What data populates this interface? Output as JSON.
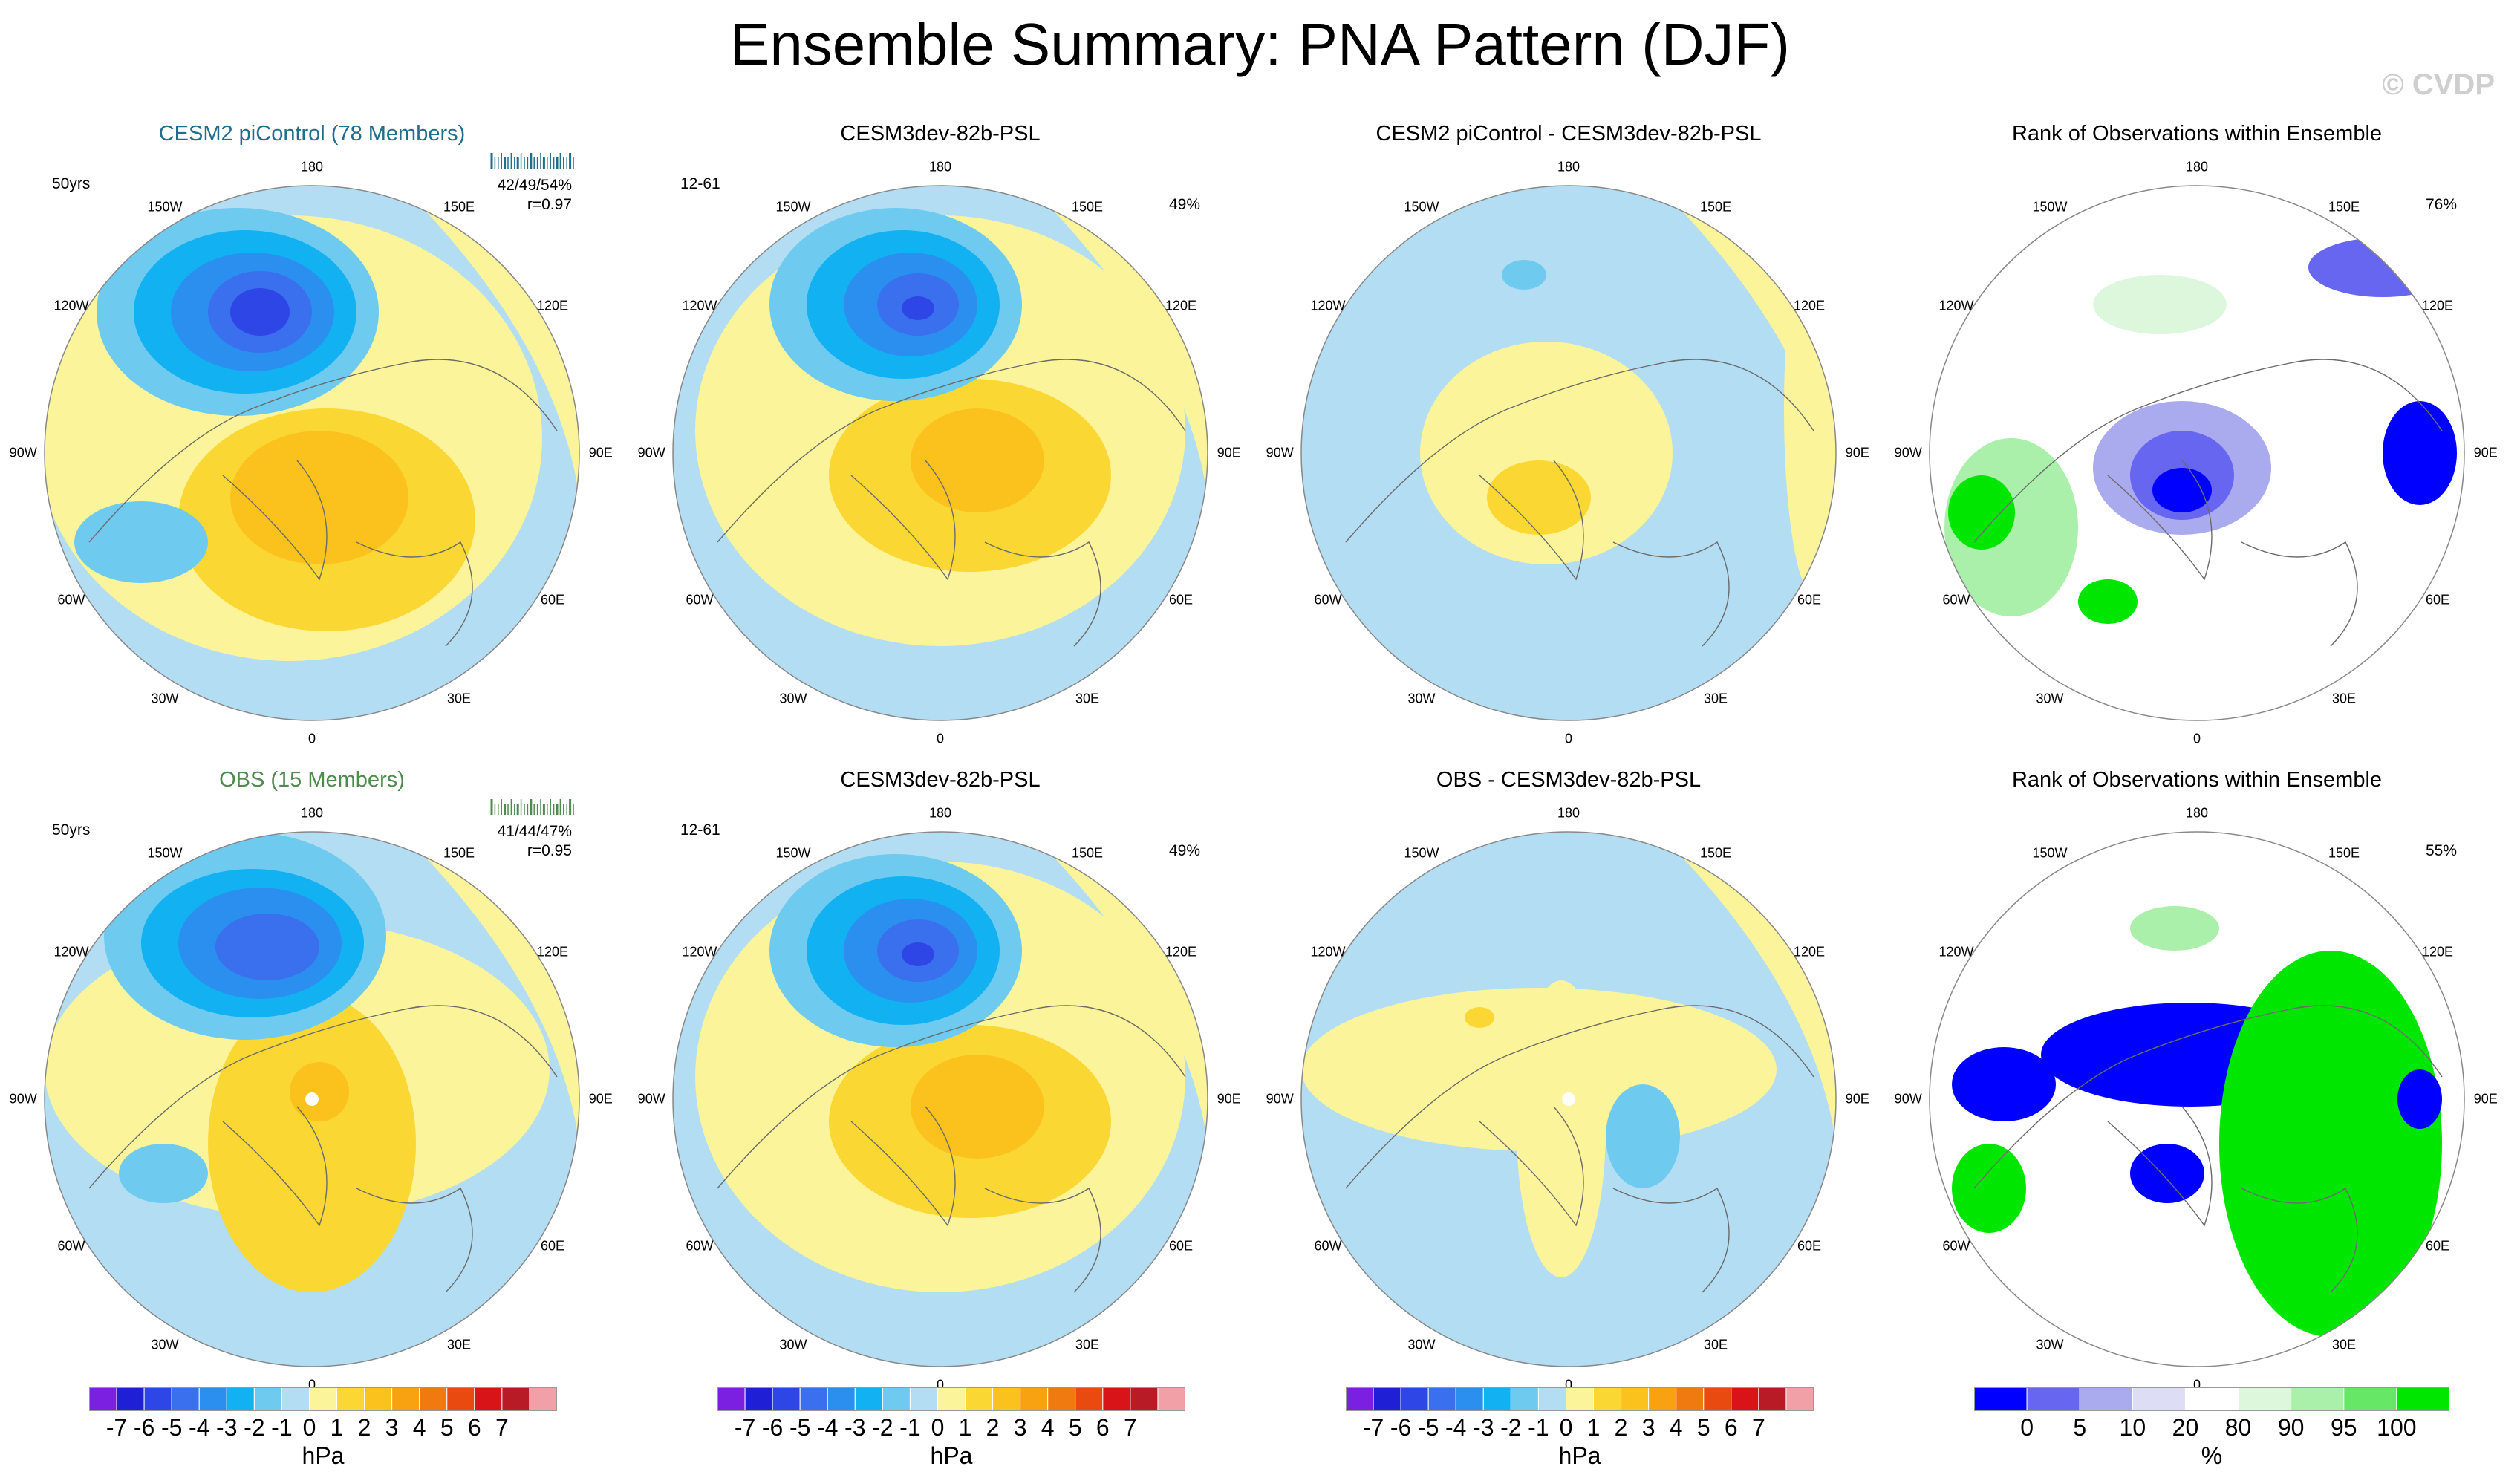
{
  "title": "Ensemble Summary: PNA Pattern (DJF)",
  "watermark": "© CVDP",
  "longitude_labels": [
    "180",
    "150E",
    "120E",
    "90E",
    "60E",
    "30E",
    "0",
    "30W",
    "60W",
    "90W",
    "120W",
    "150W"
  ],
  "panels": [
    {
      "id": "p1",
      "title": "CESM2 piControl (78 Members)",
      "title_color": "#1f6e8c",
      "left_label": "50yrs",
      "right_label": "42/49/54%",
      "right_label2": "r=0.97",
      "kind": "pattern",
      "blob": "a"
    },
    {
      "id": "p2",
      "title": "CESM3dev-82b-PSL",
      "title_color": "#000000",
      "left_label": "12-61",
      "right_label": "49%",
      "kind": "pattern",
      "blob": "b"
    },
    {
      "id": "p3",
      "title": "CESM2 piControl - CESM3dev-82b-PSL",
      "title_color": "#000000",
      "kind": "diff",
      "blob": "c"
    },
    {
      "id": "p4",
      "title": "Rank of Observations within Ensemble",
      "title_color": "#000000",
      "right_label": "76%",
      "kind": "rank",
      "blob": "d"
    },
    {
      "id": "p5",
      "title": "OBS (15 Members)",
      "title_color": "#4f8a4f",
      "left_label": "50yrs",
      "right_label": "41/44/47%",
      "right_label2": "r=0.95",
      "kind": "pattern",
      "blob": "e"
    },
    {
      "id": "p6",
      "title": "CESM3dev-82b-PSL",
      "title_color": "#000000",
      "left_label": "12-61",
      "right_label": "49%",
      "kind": "pattern",
      "blob": "b"
    },
    {
      "id": "p7",
      "title": "OBS - CESM3dev-82b-PSL",
      "title_color": "#000000",
      "kind": "diff",
      "blob": "f"
    },
    {
      "id": "p8",
      "title": "Rank of Observations within Ensemble",
      "title_color": "#000000",
      "right_label": "55%",
      "kind": "rank",
      "blob": "g"
    }
  ],
  "chart_data": {
    "type": "heatmap",
    "title": "Ensemble Summary: PNA Pattern (DJF)",
    "projection": "north polar stereographic",
    "psl_colorbar": {
      "unit": "hPa",
      "tick_labels": [
        "-7",
        "-6",
        "-5",
        "-4",
        "-3",
        "-2",
        "-1",
        "0",
        "1",
        "2",
        "3",
        "4",
        "5",
        "6",
        "7"
      ],
      "colors": [
        "#7b1fe0",
        "#1f1fd6",
        "#2e46e6",
        "#3a6fee",
        "#2b8ff0",
        "#12b1f2",
        "#6fcaf0",
        "#b3ddf2",
        "#fbf49a",
        "#fbd734",
        "#fbc21e",
        "#f8a111",
        "#f07a10",
        "#e84a10",
        "#d81418",
        "#b81a26",
        "#f2a0a8"
      ]
    },
    "rank_colorbar": {
      "unit": "%",
      "tick_labels": [
        "0",
        "5",
        "10",
        "20",
        "80",
        "90",
        "95",
        "100"
      ],
      "colors": [
        "#0000ff",
        "#6666f0",
        "#aaaaef",
        "#ddddf6",
        "#ffffff",
        "#ddf7dd",
        "#aaf0aa",
        "#66e866",
        "#00e600"
      ]
    }
  }
}
